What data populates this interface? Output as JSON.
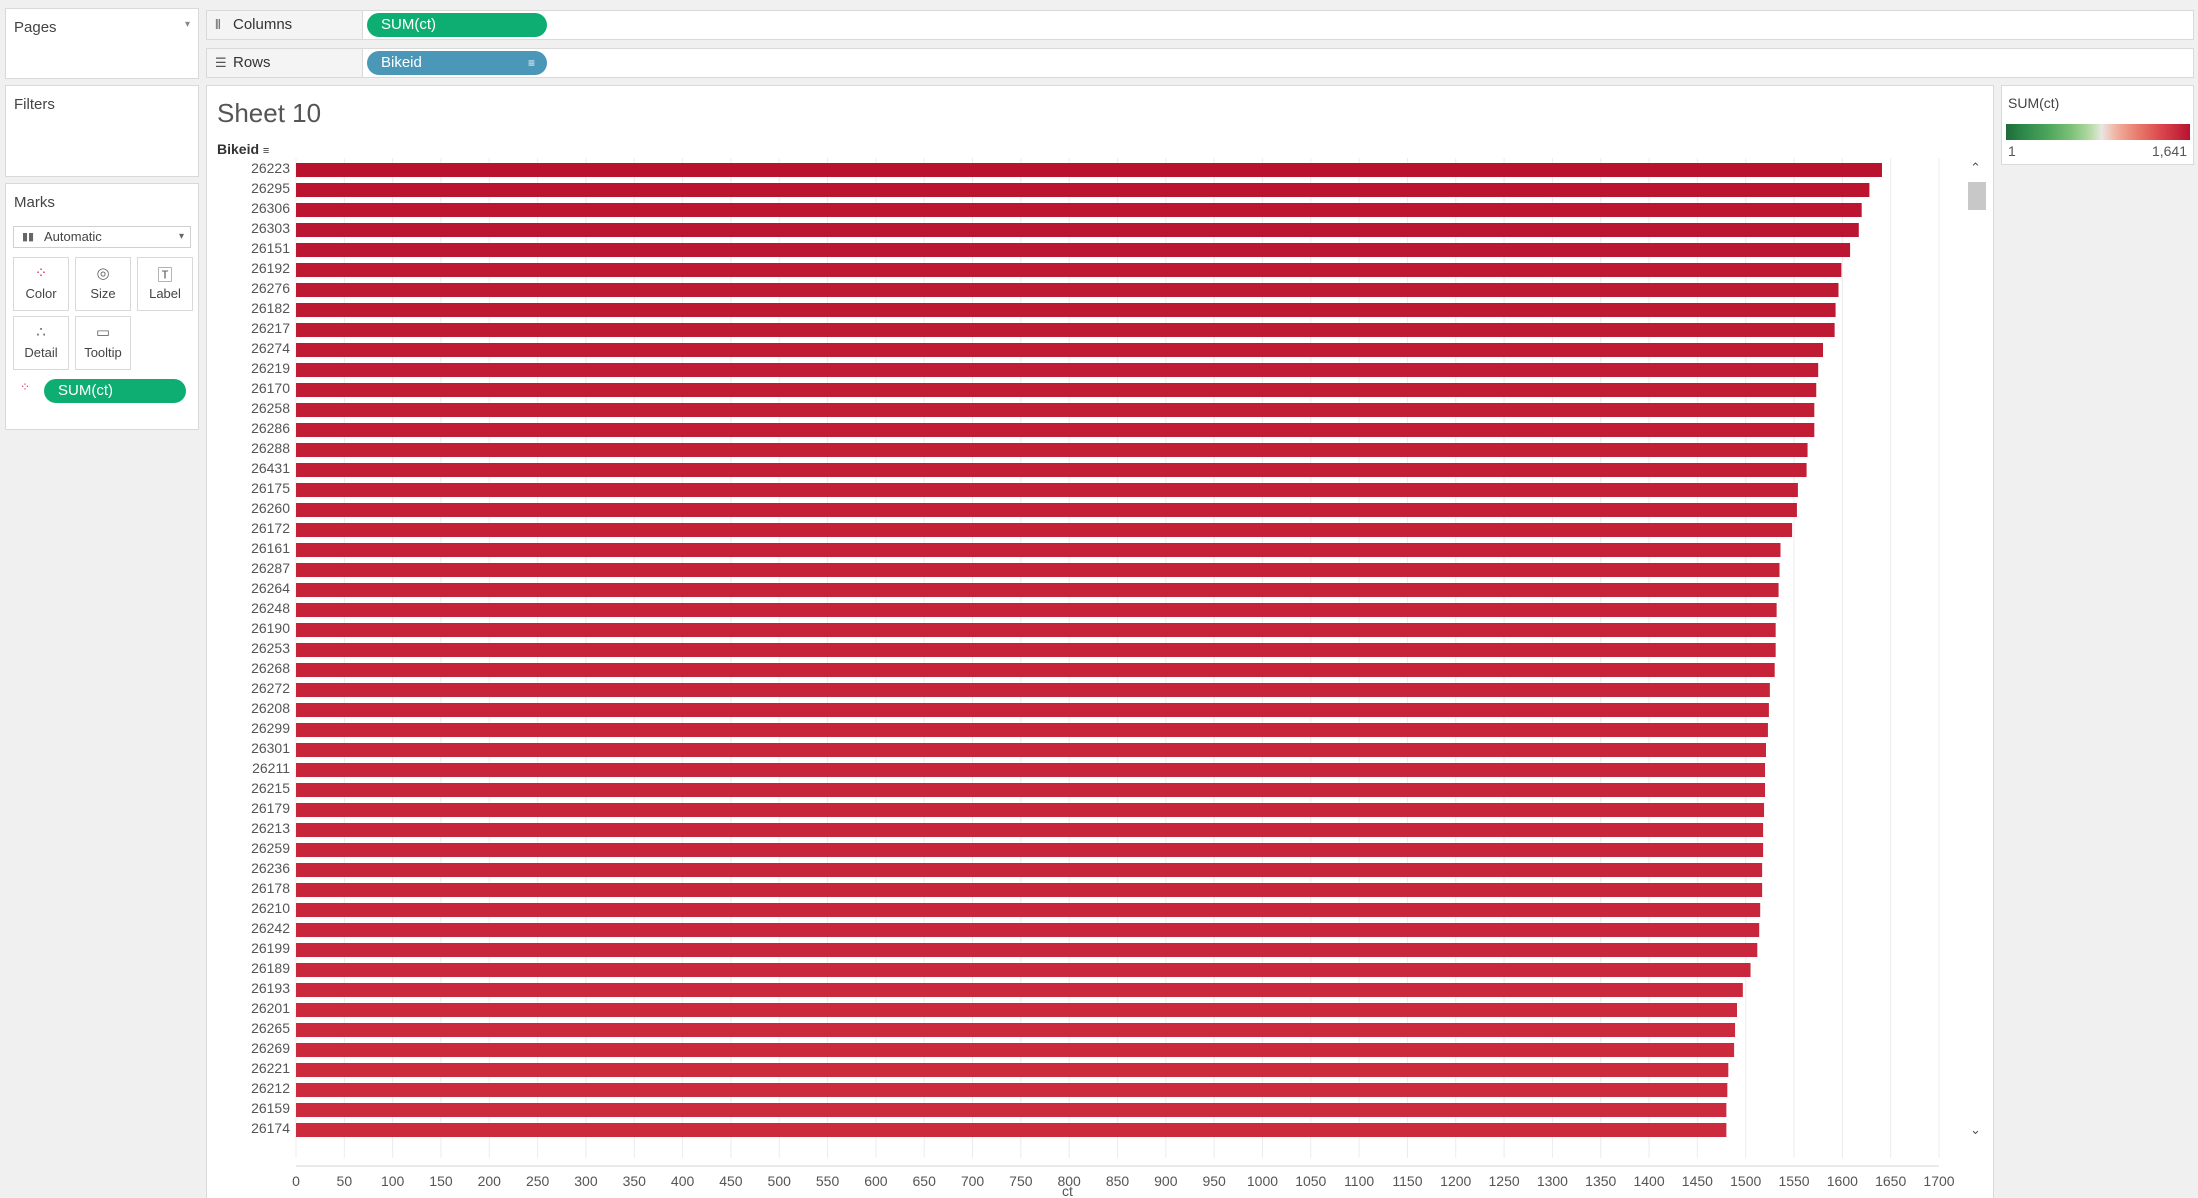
{
  "pages": {
    "title": "Pages"
  },
  "filters": {
    "title": "Filters"
  },
  "marks": {
    "title": "Marks",
    "type": "Automatic",
    "buttons": {
      "color": "Color",
      "size": "Size",
      "label": "Label",
      "detail": "Detail",
      "tooltip": "Tooltip"
    },
    "color_pill": "SUM(ct)"
  },
  "shelves": {
    "columns": {
      "label": "Columns",
      "pill": "SUM(ct)"
    },
    "rows": {
      "label": "Rows",
      "pill": "Bikeid"
    }
  },
  "sheet": {
    "title": "Sheet 10",
    "row_header": "Bikeid",
    "x_axis_title": "ct"
  },
  "legend": {
    "title": "SUM(ct)",
    "min": "1",
    "max": "1,641"
  },
  "colors": {
    "bar_dark": "#b8122f",
    "bar_light": "#cc2b3d",
    "pill_green": "#0eae73",
    "pill_blue": "#4a97b8"
  },
  "chart_data": {
    "type": "bar",
    "orientation": "horizontal",
    "y_field": "Bikeid",
    "x_field": "SUM(ct)",
    "xlim": [
      0,
      1700
    ],
    "x_ticks": [
      0,
      50,
      100,
      150,
      200,
      250,
      300,
      350,
      400,
      450,
      500,
      550,
      600,
      650,
      700,
      750,
      800,
      850,
      900,
      950,
      1000,
      1050,
      1100,
      1150,
      1200,
      1250,
      1300,
      1350,
      1400,
      1450,
      1500,
      1550,
      1600,
      1650,
      1700
    ],
    "categories": [
      "26223",
      "26295",
      "26306",
      "26303",
      "26151",
      "26192",
      "26276",
      "26182",
      "26217",
      "26274",
      "26219",
      "26170",
      "26258",
      "26286",
      "26288",
      "26431",
      "26175",
      "26260",
      "26172",
      "26161",
      "26287",
      "26264",
      "26248",
      "26190",
      "26253",
      "26268",
      "26272",
      "26208",
      "26299",
      "26301",
      "26211",
      "26215",
      "26179",
      "26213",
      "26259",
      "26236",
      "26178",
      "26210",
      "26242",
      "26199",
      "26189",
      "26193",
      "26201",
      "26265",
      "26269",
      "26221",
      "26212",
      "26159",
      "26174"
    ],
    "values": [
      1641,
      1628,
      1620,
      1617,
      1608,
      1599,
      1596,
      1593,
      1592,
      1580,
      1575,
      1573,
      1571,
      1571,
      1564,
      1563,
      1554,
      1553,
      1548,
      1536,
      1535,
      1534,
      1532,
      1531,
      1531,
      1530,
      1525,
      1524,
      1523,
      1521,
      1520,
      1520,
      1519,
      1518,
      1518,
      1517,
      1517,
      1515,
      1514,
      1512,
      1505,
      1497,
      1491,
      1489,
      1488,
      1482,
      1481,
      1480,
      1480
    ],
    "color_scale": {
      "min": 1,
      "max": 1641
    },
    "grid": "vertical"
  }
}
